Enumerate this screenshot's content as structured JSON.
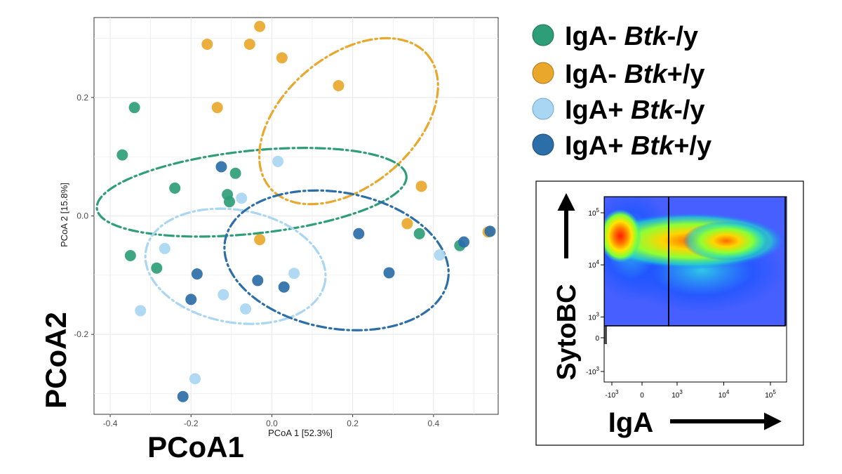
{
  "chart_data": {
    "type": "scatter",
    "xlabel": "PCoA 1 [52.3%]",
    "ylabel": "PCoA 2 [15.8%]",
    "xlabel_big": "PCoA1",
    "ylabel_big": "PCoA2",
    "xlim": [
      -0.44,
      0.56
    ],
    "ylim": [
      -0.335,
      0.335
    ],
    "x_ticks": [
      -0.4,
      -0.2,
      0.0,
      0.2,
      0.4
    ],
    "x_tick_labels": [
      "-0.4",
      "-0.2",
      "0.0",
      "0.2",
      "0.4"
    ],
    "y_ticks": [
      -0.2,
      0.0,
      0.2
    ],
    "y_tick_labels": [
      "-0.2",
      "0.0",
      "0.2"
    ],
    "grid": true,
    "legend": {
      "position": "top-right",
      "entries": [
        {
          "prefix": "IgA- ",
          "gene": "Btk",
          "suffix": "-/y",
          "color": "#2e9e78"
        },
        {
          "prefix": "IgA- ",
          "gene": "Btk",
          "suffix": "+/y",
          "color": "#e9a82c"
        },
        {
          "prefix": "IgA+ ",
          "gene": "Btk",
          "suffix": "-/y",
          "color": "#a9d6f2"
        },
        {
          "prefix": "IgA+ ",
          "gene": "Btk",
          "suffix": "+/y",
          "color": "#2b6ea8"
        }
      ]
    },
    "series": [
      {
        "name": "IgA- Btk-/y",
        "color": "#2e9e78",
        "points": [
          [
            -0.34,
            0.183
          ],
          [
            -0.37,
            0.103
          ],
          [
            -0.24,
            0.047
          ],
          [
            -0.09,
            0.072
          ],
          [
            -0.11,
            0.036
          ],
          [
            -0.105,
            0.024
          ],
          [
            -0.35,
            -0.067
          ],
          [
            -0.285,
            -0.088
          ],
          [
            0.365,
            -0.03
          ],
          [
            0.465,
            -0.05
          ]
        ],
        "ellipse": {
          "cx": -0.05,
          "cy": 0.04,
          "rx": 0.385,
          "ry": 0.07,
          "angle_deg": -6
        }
      },
      {
        "name": "IgA- Btk+/y",
        "color": "#e9a82c",
        "points": [
          [
            -0.03,
            0.32
          ],
          [
            -0.16,
            0.29
          ],
          [
            -0.055,
            0.29
          ],
          [
            0.025,
            0.267
          ],
          [
            -0.135,
            0.183
          ],
          [
            0.165,
            0.22
          ],
          [
            0.37,
            0.05
          ],
          [
            0.335,
            -0.013
          ],
          [
            -0.03,
            -0.04
          ],
          [
            0.535,
            -0.027
          ]
        ],
        "ellipse": {
          "cx": 0.19,
          "cy": 0.16,
          "rx": 0.255,
          "ry": 0.11,
          "angle_deg": -40
        }
      },
      {
        "name": "IgA+ Btk-/y",
        "color": "#a9d6f2",
        "points": [
          [
            0.015,
            0.092
          ],
          [
            -0.075,
            0.03
          ],
          [
            -0.265,
            -0.055
          ],
          [
            -0.325,
            -0.16
          ],
          [
            0.055,
            -0.097
          ],
          [
            -0.12,
            -0.133
          ],
          [
            -0.065,
            -0.157
          ],
          [
            0.415,
            -0.066
          ],
          [
            -0.19,
            -0.275
          ]
        ],
        "ellipse": {
          "cx": -0.09,
          "cy": -0.085,
          "rx": 0.225,
          "ry": 0.095,
          "angle_deg": 10
        }
      },
      {
        "name": "IgA+ Btk+/y",
        "color": "#2b6ea8",
        "points": [
          [
            -0.125,
            0.083
          ],
          [
            0.215,
            -0.03
          ],
          [
            -0.185,
            -0.098
          ],
          [
            -0.035,
            -0.109
          ],
          [
            0.03,
            -0.12
          ],
          [
            -0.2,
            -0.141
          ],
          [
            0.29,
            -0.096
          ],
          [
            0.475,
            -0.044
          ],
          [
            0.54,
            -0.026
          ],
          [
            -0.22,
            -0.305
          ]
        ],
        "ellipse": {
          "cx": 0.16,
          "cy": -0.075,
          "rx": 0.28,
          "ry": 0.115,
          "angle_deg": 10
        }
      }
    ]
  },
  "flow_inset": {
    "y_axis_label": "SytoBC",
    "x_axis_label": "IgA",
    "y_ticks": [
      {
        "value": 100000,
        "base": "10",
        "exp": "5"
      },
      {
        "value": 10000,
        "base": "10",
        "exp": "4"
      },
      {
        "value": 1000,
        "base": "10",
        "exp": "3"
      },
      {
        "value": 0,
        "base": "0",
        "exp": ""
      },
      {
        "value": -1000,
        "base": "-10",
        "exp": "3"
      }
    ],
    "x_ticks": [
      {
        "value": -1000,
        "base": "-10",
        "exp": "3"
      },
      {
        "value": 0,
        "base": "0",
        "exp": ""
      },
      {
        "value": 1000,
        "base": "10",
        "exp": "3"
      },
      {
        "value": 10000,
        "base": "10",
        "exp": "4"
      },
      {
        "value": 100000,
        "base": "10",
        "exp": "5"
      }
    ],
    "gate_boundary_value": 600
  }
}
